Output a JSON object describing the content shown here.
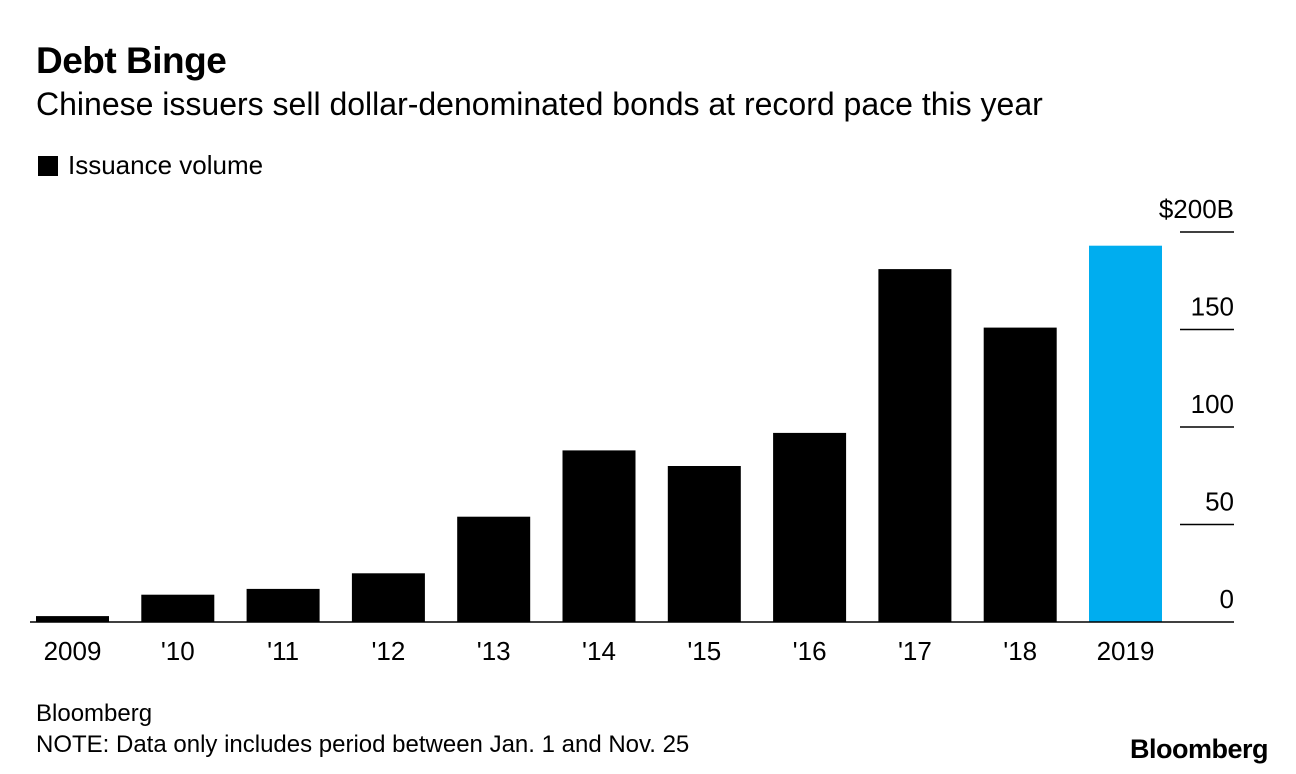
{
  "chart_data": {
    "type": "bar",
    "title": "Debt Binge",
    "subtitle": "Chinese issuers sell dollar-denominated bonds at record pace this year",
    "legend": [
      "Issuance volume"
    ],
    "categories": [
      "2009",
      "'10",
      "'11",
      "'12",
      "'13",
      "'14",
      "'15",
      "'16",
      "'17",
      "'18",
      "2019"
    ],
    "series": [
      {
        "name": "Issuance volume",
        "values": [
          3,
          14,
          17,
          25,
          54,
          88,
          80,
          97,
          181,
          151,
          193
        ]
      }
    ],
    "highlight_index": 10,
    "colors": {
      "default": "#000000",
      "highlight": "#00adef"
    },
    "ylim": [
      0,
      200
    ],
    "yticks": [
      0,
      50,
      100,
      150,
      200
    ],
    "ytick_labels": [
      "0",
      "50",
      "100",
      "150",
      "$200B"
    ],
    "xlabel": "",
    "ylabel": "",
    "axis_side": "right"
  },
  "footer": {
    "source": "Bloomberg",
    "note": "NOTE: Data only includes period between Jan. 1 and Nov. 25",
    "logo": "Bloomberg"
  }
}
